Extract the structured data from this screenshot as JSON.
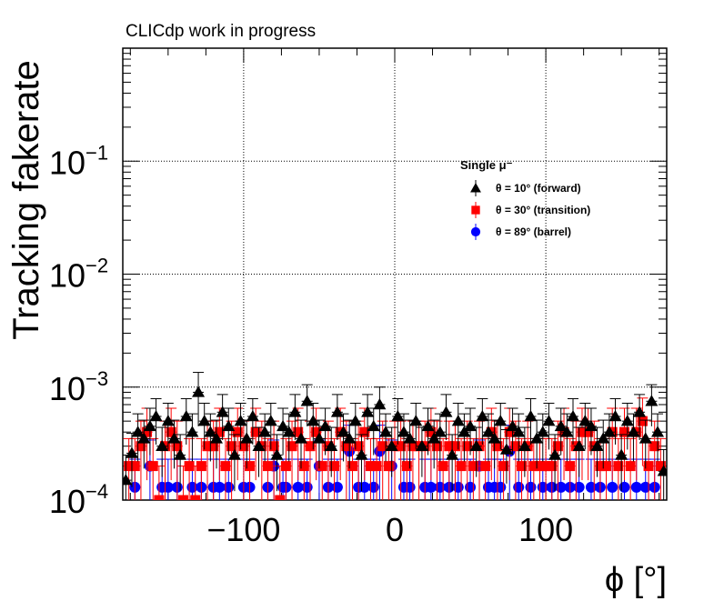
{
  "chart_data": {
    "type": "scatter",
    "title": "CLICdp work in progress",
    "xlabel": "ϕ [°]",
    "ylabel": "Tracking fakerate",
    "xlim": [
      -180,
      180
    ],
    "ylim": [
      0.0001,
      1
    ],
    "yscale": "log",
    "grid": true,
    "x_ticks": [
      -100,
      0,
      100
    ],
    "x_tick_labels": [
      "−100",
      "0",
      "100"
    ],
    "y_ticks": [
      0.0001,
      0.001,
      0.01,
      0.1
    ],
    "y_tick_bases": [
      "10",
      "10",
      "10",
      "10"
    ],
    "y_tick_exponents": [
      "−4",
      "−3",
      "−2",
      "−1"
    ],
    "legend": {
      "title": "Single μ⁻",
      "placement": "center-right",
      "entries": [
        "θ = 10° (forward)",
        "θ = 30° (transition)",
        "θ = 89° (barrel)"
      ]
    },
    "series": [
      {
        "name": "θ = 10° (forward)",
        "marker": "triangle",
        "color": "#000000",
        "x": [
          -178,
          -174,
          -170,
          -166,
          -162,
          -158,
          -154,
          -150,
          -146,
          -142,
          -138,
          -134,
          -130,
          -126,
          -122,
          -118,
          -114,
          -110,
          -106,
          -102,
          -98,
          -94,
          -90,
          -86,
          -82,
          -78,
          -74,
          -70,
          -66,
          -62,
          -58,
          -54,
          -50,
          -46,
          -42,
          -38,
          -34,
          -30,
          -26,
          -22,
          -18,
          -14,
          -10,
          -6,
          -2,
          2,
          6,
          10,
          14,
          18,
          22,
          26,
          30,
          34,
          38,
          42,
          46,
          50,
          54,
          58,
          62,
          66,
          70,
          74,
          78,
          82,
          86,
          90,
          94,
          98,
          102,
          106,
          110,
          114,
          118,
          122,
          126,
          130,
          134,
          138,
          142,
          146,
          150,
          154,
          158,
          162,
          166,
          170,
          174,
          178
        ],
        "y": [
          0.00015,
          0.00026,
          0.0004,
          0.00035,
          0.00045,
          0.00055,
          0.0003,
          0.0005,
          0.00035,
          0.00025,
          0.00055,
          0.0004,
          0.0009,
          0.0005,
          0.0004,
          0.00035,
          0.0006,
          0.00045,
          0.00025,
          0.0005,
          0.00035,
          0.00055,
          0.0003,
          0.0004,
          0.0005,
          0.00025,
          0.00045,
          0.0004,
          0.0006,
          0.00035,
          0.00075,
          0.0005,
          0.00035,
          0.00045,
          0.0003,
          0.0006,
          0.0004,
          0.00035,
          0.0005,
          0.00025,
          0.0006,
          0.00045,
          0.0007,
          0.0004,
          0.0003,
          0.00055,
          0.0004,
          0.00035,
          0.0005,
          0.0003,
          0.00045,
          0.00035,
          0.0004,
          0.0006,
          0.00025,
          0.0005,
          0.0004,
          0.00045,
          0.0003,
          0.00055,
          0.0004,
          0.00035,
          0.0005,
          0.00028,
          0.00045,
          0.0004,
          0.0003,
          0.00055,
          0.00035,
          0.0004,
          0.0005,
          0.00025,
          0.00045,
          0.0004,
          0.00055,
          0.0003,
          0.0005,
          0.00045,
          0.0003,
          0.00035,
          0.0004,
          0.00055,
          0.00025,
          0.0005,
          0.0004,
          0.0006,
          0.00035,
          0.00075,
          0.0004,
          0.00018
        ],
        "err": [
          0.0001,
          0.00013,
          0.00018,
          0.00016,
          0.0002,
          0.00024,
          0.00014,
          0.00022,
          0.00016,
          0.00013,
          0.00024,
          0.00018,
          0.00045,
          0.00022,
          0.00018,
          0.00016,
          0.00026,
          0.0002,
          0.00013,
          0.00022,
          0.00016,
          0.00024,
          0.00014,
          0.00018,
          0.00022,
          0.00013,
          0.0002,
          0.00018,
          0.00026,
          0.00016,
          0.0003,
          0.00022,
          0.00016,
          0.0002,
          0.00014,
          0.00026,
          0.00018,
          0.00016,
          0.00022,
          0.00013,
          0.00026,
          0.0002,
          0.0003,
          0.00018,
          0.00014,
          0.00024,
          0.00018,
          0.00016,
          0.00022,
          0.00014,
          0.0002,
          0.00016,
          0.00018,
          0.00026,
          0.00013,
          0.00022,
          0.00018,
          0.0002,
          0.00014,
          0.00024,
          0.00018,
          0.00016,
          0.00022,
          0.00014,
          0.0002,
          0.00018,
          0.00014,
          0.00024,
          0.00016,
          0.00018,
          0.00022,
          0.00013,
          0.0002,
          0.00018,
          0.00024,
          0.00014,
          0.00022,
          0.0002,
          0.00014,
          0.00016,
          0.00018,
          0.00024,
          0.00013,
          0.00022,
          0.00018,
          0.00026,
          0.00016,
          0.0003,
          0.00018,
          0.0001
        ]
      },
      {
        "name": "θ = 30° (transition)",
        "marker": "square",
        "color": "#ff0000",
        "x": [
          -176,
          -172,
          -168,
          -164,
          -160,
          -156,
          -152,
          -148,
          -144,
          -140,
          -136,
          -132,
          -128,
          -124,
          -120,
          -116,
          -112,
          -108,
          -104,
          -100,
          -96,
          -92,
          -88,
          -84,
          -80,
          -76,
          -72,
          -68,
          -64,
          -60,
          -56,
          -52,
          -48,
          -44,
          -40,
          -36,
          -32,
          -28,
          -24,
          -20,
          -16,
          -12,
          -8,
          -4,
          0,
          4,
          8,
          12,
          16,
          20,
          24,
          28,
          32,
          36,
          40,
          44,
          48,
          52,
          56,
          60,
          64,
          68,
          72,
          76,
          80,
          84,
          88,
          92,
          96,
          100,
          104,
          108,
          112,
          116,
          120,
          124,
          128,
          132,
          136,
          140,
          144,
          148,
          152,
          156,
          160,
          164,
          168,
          172,
          176
        ],
        "y": [
          0.0002,
          0.0002,
          0.0003,
          0.0004,
          0.0002,
          0.0001,
          0.0003,
          0.0004,
          0.0003,
          0.0001,
          0.0002,
          0.0001,
          0.0002,
          0.0003,
          0.0003,
          0.0004,
          0.0002,
          0.0003,
          0.0004,
          0.0003,
          0.0002,
          0.0004,
          0.0003,
          0.0002,
          0.0003,
          0.0001,
          0.0002,
          0.0003,
          0.0004,
          0.0002,
          0.0003,
          0.0004,
          0.0002,
          0.0003,
          0.0002,
          0.0004,
          0.0003,
          0.0002,
          0.0003,
          0.0004,
          0.0002,
          0.0002,
          0.0003,
          0.0002,
          0.0003,
          0.0003,
          0.0002,
          0.0003,
          0.0003,
          0.0003,
          0.0004,
          0.0003,
          0.0002,
          0.0003,
          0.0003,
          0.0002,
          0.0003,
          0.0002,
          0.0003,
          0.0002,
          0.0004,
          0.0003,
          0.0002,
          0.0004,
          0.0003,
          0.0002,
          0.0003,
          0.0002,
          0.0002,
          0.0002,
          0.0002,
          0.0003,
          0.0004,
          0.0002,
          0.0003,
          0.0004,
          0.0004,
          0.0003,
          0.0002,
          0.0002,
          0.0004,
          0.0002,
          0.0004,
          0.0002,
          0.0004,
          0.0005,
          0.0002,
          0.0003,
          0.0002
        ],
        "err": [
          0.00015,
          0.00015,
          0.0002,
          0.00025,
          0.00015,
          0.0001,
          0.0002,
          0.00025,
          0.0002,
          0.0001,
          0.00015,
          0.0001,
          0.00015,
          0.0002,
          0.0002,
          0.00025,
          0.00015,
          0.0002,
          0.00025,
          0.0002,
          0.00015,
          0.00025,
          0.0002,
          0.00015,
          0.0002,
          0.0001,
          0.00015,
          0.0002,
          0.00025,
          0.00015,
          0.0002,
          0.00025,
          0.00015,
          0.0002,
          0.00015,
          0.00025,
          0.0002,
          0.00015,
          0.0002,
          0.00025,
          0.00015,
          0.00015,
          0.0002,
          0.00015,
          0.0002,
          0.0002,
          0.00015,
          0.0002,
          0.0002,
          0.0002,
          0.00025,
          0.0002,
          0.00015,
          0.0002,
          0.0002,
          0.00015,
          0.0002,
          0.00015,
          0.0002,
          0.00015,
          0.00025,
          0.0002,
          0.00015,
          0.00025,
          0.0002,
          0.00015,
          0.0002,
          0.00015,
          0.00015,
          0.00015,
          0.00015,
          0.0002,
          0.00025,
          0.00015,
          0.0002,
          0.00025,
          0.00025,
          0.0002,
          0.00015,
          0.00015,
          0.00025,
          0.00015,
          0.00025,
          0.00015,
          0.00025,
          0.0003,
          0.00015,
          0.0002,
          0.00015
        ]
      },
      {
        "name": "θ = 89° (barrel)",
        "marker": "circle",
        "color": "#0000ff",
        "x": [
          -172,
          -162,
          -154,
          -150,
          -144,
          -134,
          -128,
          -120,
          -116,
          -110,
          -100,
          -96,
          -84,
          -80,
          -74,
          -72,
          -64,
          -58,
          -50,
          -44,
          -38,
          -30,
          -24,
          -20,
          -14,
          -10,
          -2,
          6,
          10,
          20,
          24,
          30,
          36,
          42,
          50,
          56,
          62,
          66,
          70,
          76,
          82,
          90,
          98,
          104,
          110,
          116,
          122,
          130,
          136,
          144,
          152,
          160,
          166,
          172
        ],
        "y": [
          0.00013,
          0.0002,
          0.00013,
          0.00013,
          0.00013,
          0.00013,
          0.00013,
          0.00013,
          0.00013,
          0.00013,
          0.00013,
          0.00013,
          0.00013,
          0.0002,
          0.00013,
          0.00013,
          0.00013,
          0.00013,
          0.0002,
          0.00013,
          0.00013,
          0.00027,
          0.00013,
          0.00013,
          0.00013,
          0.00027,
          0.0002,
          0.00013,
          0.00013,
          0.00013,
          0.00013,
          0.00013,
          0.00013,
          0.00013,
          0.00013,
          0.0002,
          0.00013,
          0.00013,
          0.00013,
          0.00027,
          0.00013,
          0.00013,
          0.00013,
          0.00013,
          0.00013,
          0.00013,
          0.00013,
          0.00013,
          0.00013,
          0.00013,
          0.00013,
          0.00013,
          0.00013,
          0.00013
        ],
        "err": [
          0.0001,
          0.00014,
          0.0001,
          0.0001,
          0.0001,
          0.0001,
          0.0001,
          0.0001,
          0.0001,
          0.0001,
          0.0001,
          0.0001,
          0.0001,
          0.00014,
          0.0001,
          0.0001,
          0.0001,
          0.0001,
          0.00014,
          0.0001,
          0.0001,
          0.00019,
          0.0001,
          0.0001,
          0.0001,
          0.00019,
          0.00014,
          0.0001,
          0.0001,
          0.0001,
          0.0001,
          0.0001,
          0.0001,
          0.0001,
          0.0001,
          0.00014,
          0.0001,
          0.0001,
          0.0001,
          0.00019,
          0.0001,
          0.0001,
          0.0001,
          0.0001,
          0.0001,
          0.0001,
          0.0001,
          0.0001,
          0.0001,
          0.0001,
          0.0001,
          0.0001,
          0.0001,
          0.0001
        ]
      }
    ]
  }
}
